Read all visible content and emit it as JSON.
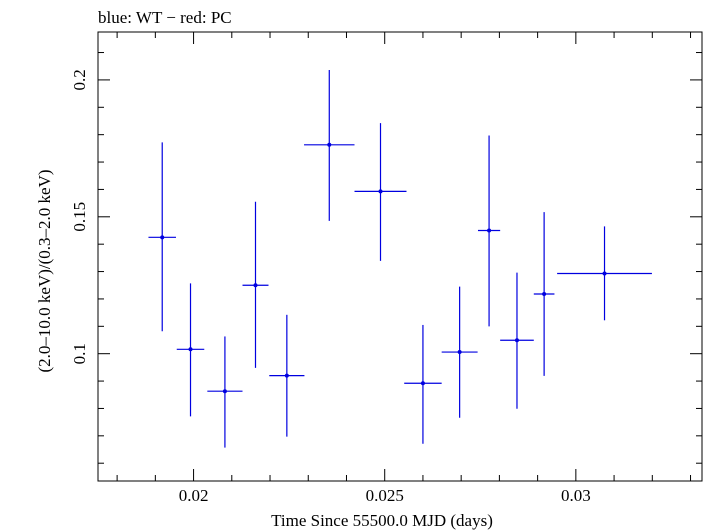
{
  "chart_data": {
    "type": "scatter",
    "title": "blue: WT − red: PC",
    "xlabel": "Time Since 55500.0 MJD (days)",
    "ylabel": "(2.0–10.0 keV)/(0.3–2.0 keV)",
    "xlim": [
      0.0175,
      0.0333
    ],
    "ylim": [
      0.0535,
      0.2175
    ],
    "xticks": [
      {
        "value": 0.02,
        "label": "0.02"
      },
      {
        "value": 0.025,
        "label": "0.025"
      },
      {
        "value": 0.03,
        "label": "0.03"
      }
    ],
    "yticks": [
      {
        "value": 0.1,
        "label": "0.1"
      },
      {
        "value": 0.15,
        "label": "0.15"
      },
      {
        "value": 0.2,
        "label": "0.2"
      }
    ],
    "grid": false,
    "series": [
      {
        "color": "#0000e0",
        "points": [
          {
            "x": 0.01918,
            "xerr": 0.00036,
            "y": 0.1425,
            "ylo": 0.1082,
            "yhi": 0.1772
          },
          {
            "x": 0.01992,
            "xerr": 0.00036,
            "y": 0.1016,
            "ylo": 0.0771,
            "yhi": 0.1257
          },
          {
            "x": 0.02082,
            "xerr": 0.00046,
            "y": 0.0863,
            "ylo": 0.0657,
            "yhi": 0.1063
          },
          {
            "x": 0.02162,
            "xerr": 0.00034,
            "y": 0.125,
            "ylo": 0.0948,
            "yhi": 0.1555
          },
          {
            "x": 0.02244,
            "xerr": 0.00046,
            "y": 0.092,
            "ylo": 0.0697,
            "yhi": 0.1142
          },
          {
            "x": 0.02355,
            "xerr": 0.00066,
            "y": 0.1763,
            "ylo": 0.1485,
            "yhi": 0.2036
          },
          {
            "x": 0.02489,
            "xerr": 0.00068,
            "y": 0.1593,
            "ylo": 0.1339,
            "yhi": 0.1842
          },
          {
            "x": 0.026,
            "xerr": 0.00049,
            "y": 0.0892,
            "ylo": 0.0671,
            "yhi": 0.1105
          },
          {
            "x": 0.02696,
            "xerr": 0.00047,
            "y": 0.1006,
            "ylo": 0.0766,
            "yhi": 0.1245
          },
          {
            "x": 0.02773,
            "xerr": 0.00029,
            "y": 0.145,
            "ylo": 0.11,
            "yhi": 0.1797
          },
          {
            "x": 0.02846,
            "xerr": 0.00044,
            "y": 0.1049,
            "ylo": 0.0799,
            "yhi": 0.1296
          },
          {
            "x": 0.02917,
            "xerr": 0.00027,
            "y": 0.1218,
            "ylo": 0.0919,
            "yhi": 0.1517
          },
          {
            "x": 0.03075,
            "xerr": 0.00124,
            "y": 0.1293,
            "ylo": 0.1122,
            "yhi": 0.1465
          }
        ]
      }
    ]
  }
}
